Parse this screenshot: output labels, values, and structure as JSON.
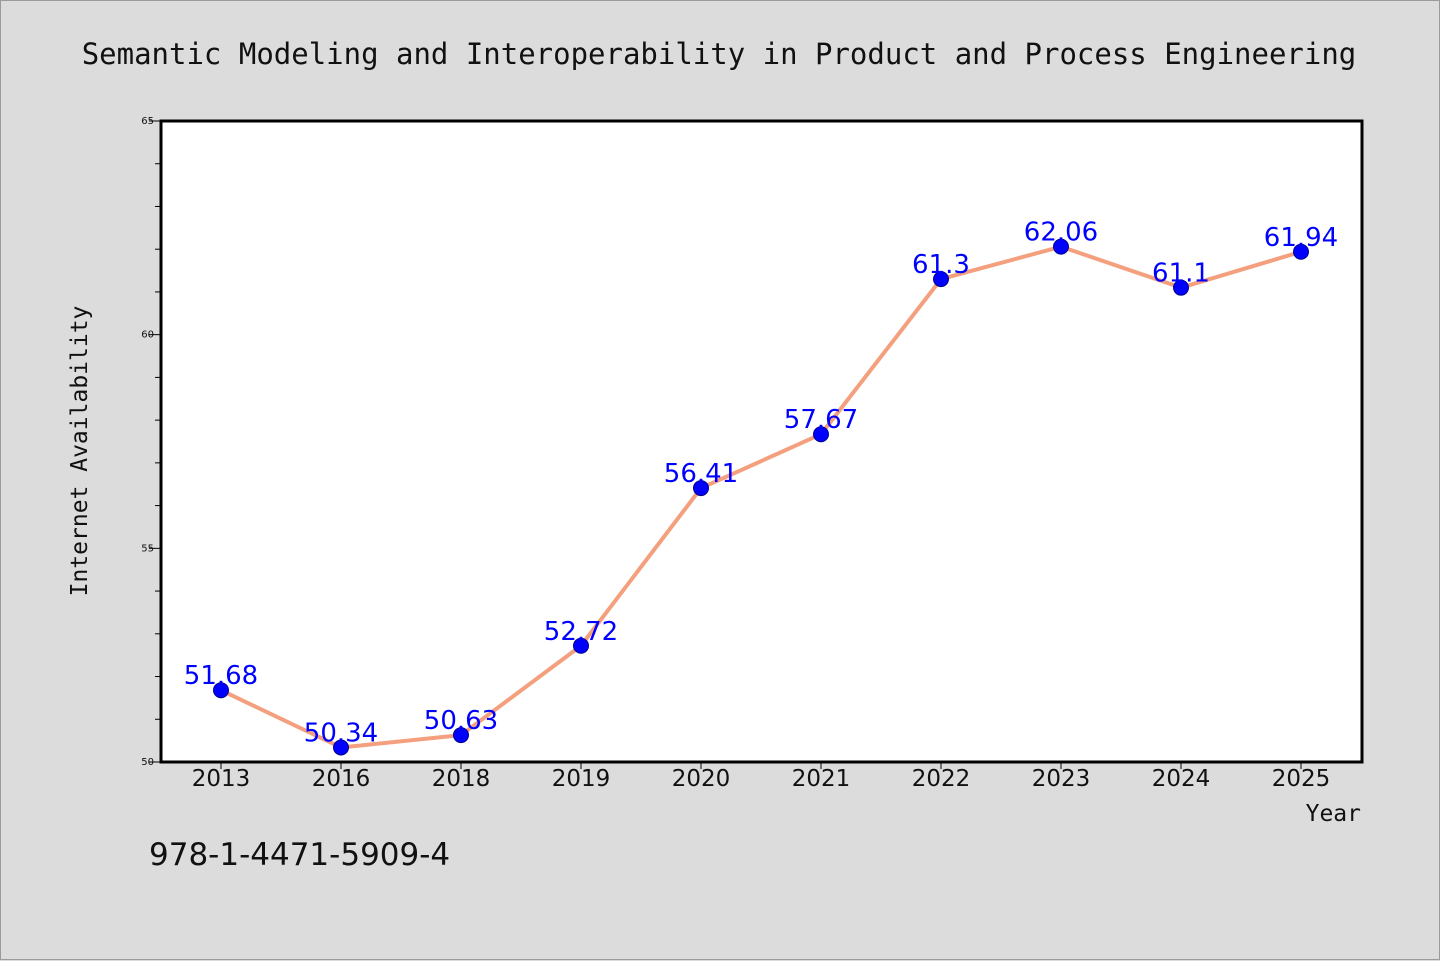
{
  "chart_data": {
    "type": "line",
    "title": "Semantic Modeling and Interoperability in Product and Process Engineering",
    "xlabel": "Year",
    "ylabel": "Internet Availability",
    "categories": [
      "2013",
      "2016",
      "2018",
      "2019",
      "2020",
      "2021",
      "2022",
      "2023",
      "2024",
      "2025"
    ],
    "series": [
      {
        "values": [
          51.68,
          50.34,
          50.63,
          52.72,
          56.41,
          57.67,
          61.3,
          62.06,
          61.1,
          61.94
        ],
        "data_labels": [
          "51.68",
          "50.34",
          "50.63",
          "52.72",
          "56.41",
          "57.67",
          "61.3",
          "62.06",
          "61.1",
          "61.94"
        ],
        "line_color": "#f4a07e",
        "marker_color": "#0000ff"
      }
    ],
    "ylim": [
      50,
      65
    ],
    "yticks": [
      50,
      55,
      60,
      65
    ],
    "yticks_labels": [
      "50",
      "55",
      "60",
      "65"
    ],
    "grid": false,
    "legend": "none"
  },
  "footer": {
    "isbn": "978-1-4471-5909-4"
  },
  "colors": {
    "background": "#dcdcdc",
    "plot_background": "#ffffff",
    "line": "#f4a07e",
    "marker": "#0000ff",
    "data_label": "#0000ff"
  }
}
